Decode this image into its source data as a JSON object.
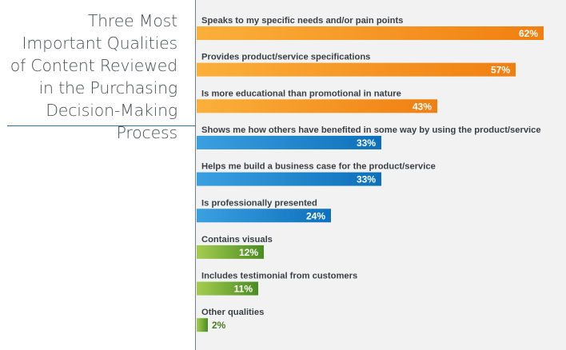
{
  "chart_data": {
    "type": "bar",
    "orientation": "horizontal",
    "title": "Three Most Important Qualities of Content Reviewed in the Purchasing Decision-Making Process",
    "xlabel": "",
    "ylabel": "",
    "xlim": [
      0,
      100
    ],
    "grid": false,
    "legend": "none",
    "categories": [
      "Speaks to my specific needs and/or pain points",
      "Provides product/service specifications",
      "Is more educational than promotional in nature",
      "Shows me how others have benefited in some way by using the product/service",
      "Helps me build a business case for the product/service",
      "Is professionally presented",
      "Contains visuals",
      "Includes testimonial from customers",
      "Other qualities"
    ],
    "values": [
      62,
      57,
      43,
      33,
      33,
      24,
      12,
      11,
      2
    ],
    "value_labels": [
      "62%",
      "57%",
      "43%",
      "33%",
      "33%",
      "24%",
      "12%",
      "11%",
      "2%"
    ],
    "groups": [
      "orange",
      "orange",
      "orange",
      "blue",
      "blue",
      "blue",
      "green",
      "green",
      "green"
    ]
  },
  "colors": {
    "orange": [
      "#fbb03b",
      "#f07f10"
    ],
    "blue": [
      "#3aa0e0",
      "#0d70bb"
    ],
    "green": [
      "#a5cd50",
      "#4a8c22"
    ],
    "value_outside": "#4a7d1f",
    "panel_background": "#f2f2f2",
    "divider": "#2e6fa5"
  }
}
